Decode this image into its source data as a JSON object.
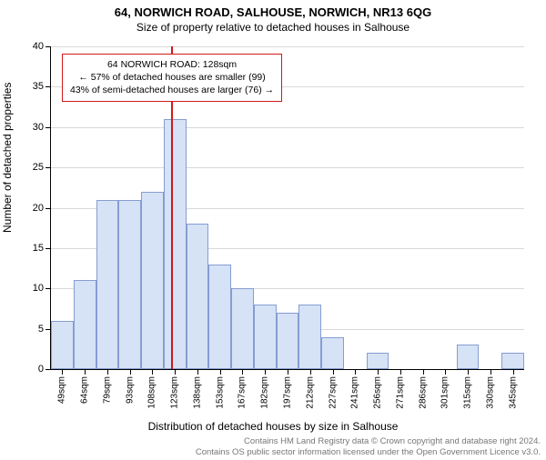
{
  "title": "64, NORWICH ROAD, SALHOUSE, NORWICH, NR13 6QG",
  "subtitle": "Size of property relative to detached houses in Salhouse",
  "y_axis_title": "Number of detached properties",
  "x_axis_title": "Distribution of detached houses by size in Salhouse",
  "footer_line1": "Contains HM Land Registry data © Crown copyright and database right 2024.",
  "footer_line2": "Contains OS public sector information licensed under the Open Government Licence v3.0.",
  "chart": {
    "type": "histogram",
    "background_color": "#ffffff",
    "bar_fill_color": "#d6e2f5",
    "bar_border_color": "rgba(70,100,180,0.55)",
    "grid_color": "#cccccc",
    "y": {
      "min": 0,
      "max": 40,
      "step": 5
    },
    "x_labels": [
      "49sqm",
      "64sqm",
      "79sqm",
      "93sqm",
      "108sqm",
      "123sqm",
      "138sqm",
      "153sqm",
      "167sqm",
      "182sqm",
      "197sqm",
      "212sqm",
      "227sqm",
      "241sqm",
      "256sqm",
      "271sqm",
      "286sqm",
      "301sqm",
      "315sqm",
      "330sqm",
      "345sqm"
    ],
    "values": [
      6,
      11,
      21,
      21,
      22,
      31,
      18,
      13,
      10,
      8,
      7,
      8,
      4,
      0,
      2,
      0,
      0,
      0,
      3,
      0,
      2
    ],
    "marker": {
      "index_position": 5.35,
      "color": "#d11a1a",
      "callout_border": "#d11a1a",
      "line1": "64 NORWICH ROAD: 128sqm",
      "line2": "← 57% of detached houses are smaller (99)",
      "line3": "43% of semi-detached houses are larger (76) →"
    }
  }
}
